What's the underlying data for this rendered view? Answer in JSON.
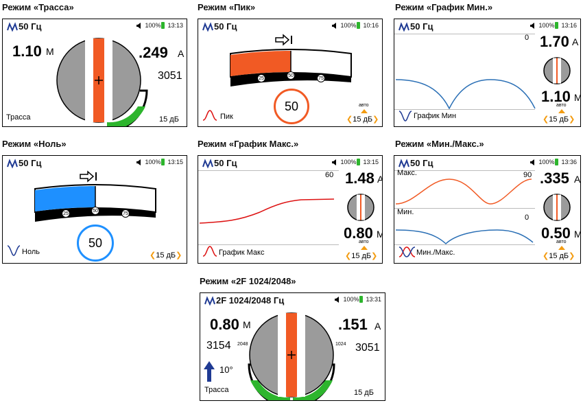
{
  "captions": {
    "trassa": "Режим «Трасса»",
    "pik": "Режим «Пик»",
    "grafik_min": "Режим «График Мин.»",
    "nol": "Режим «Ноль»",
    "grafik_maks": "Режим «График Макс.»",
    "min_maks": "Режим «Мин./Макс.»",
    "two_f": "Режим «2F 1024/2048»"
  },
  "screens": {
    "trassa": {
      "freq": "50 Гц",
      "battery": "100%",
      "time": "13:13",
      "depth": "1.10",
      "depth_unit": "М",
      "current": ".249",
      "current_unit": "А",
      "signal": "3051",
      "mode_label": "Трасса",
      "gain": "15 дБ",
      "signal_fill": 0.6
    },
    "pik": {
      "freq": "50 Гц",
      "battery": "100%",
      "time": "10:16",
      "bar_fill": 0.5,
      "ticks": [
        "25",
        "50",
        "75"
      ],
      "value": "50",
      "mode_label": "Пик",
      "auto": "авто",
      "gain": "15 дБ",
      "accent": "#f15a24"
    },
    "grafik_min": {
      "freq": "50 Гц",
      "battery": "100%",
      "time": "13:16",
      "graph_top": "0",
      "current": "1.70",
      "current_unit": "А",
      "depth": "1.10",
      "depth_unit": "М",
      "mode_label": "График Мин",
      "auto": "авто",
      "gain": "15 дБ"
    },
    "nol": {
      "freq": "50 Гц",
      "battery": "100%",
      "time": "13:15",
      "bar_fill": 0.5,
      "ticks": [
        "25",
        "50",
        "75"
      ],
      "value": "50",
      "mode_label": "Ноль",
      "gain": "15 дБ",
      "accent": "#1e90ff"
    },
    "grafik_maks": {
      "freq": "50 Гц",
      "battery": "100%",
      "time": "13:15",
      "graph_top": "60",
      "current": "1.48",
      "current_unit": "А",
      "depth": "0.80",
      "depth_unit": "М",
      "mode_label": "График Макс",
      "auto": "авто",
      "gain": "15 дБ"
    },
    "min_maks": {
      "freq": "50 Гц",
      "battery": "100%",
      "time": "13:36",
      "maks_label": "Макс.",
      "maks_value": "90",
      "min_label": "Мин.",
      "min_value": "0",
      "current": ".335",
      "current_unit": "А",
      "depth": "0.50",
      "depth_unit": "М",
      "mode_label": "Мин./Макс.",
      "auto": "авто",
      "gain": "15 дБ"
    },
    "two_f": {
      "freq": "2F 1024/2048 Гц",
      "battery": "100%",
      "time": "13:31",
      "depth": "0.80",
      "depth_unit": "М",
      "current": ".151",
      "current_unit": "А",
      "left_signal": "3154",
      "right_signal": "3051",
      "left_freq": "2048",
      "right_freq": "1024",
      "angle": "10°",
      "mode_label": "Трасса",
      "gain": "15 дБ"
    }
  },
  "colors": {
    "orange": "#f15a24",
    "green": "#2db52d",
    "blue": "#1e90ff",
    "navy": "#1f3a93",
    "graph_blue": "#2a6fb5",
    "graph_red": "#d11"
  }
}
